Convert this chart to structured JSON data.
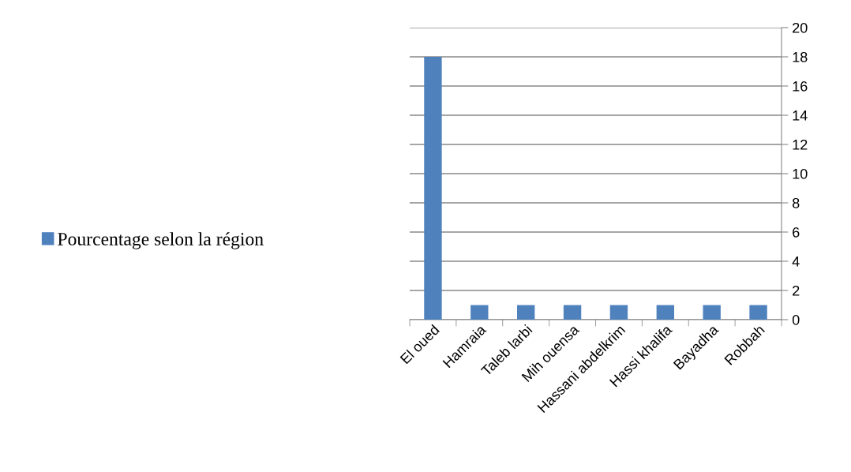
{
  "chart_data": {
    "type": "bar",
    "categories": [
      "El oued",
      "Hamraia",
      "Taleb larbi",
      "Mih ouensa",
      "Hassani abdelkrim",
      "Hassi khalifa",
      "Bayadha",
      "Robbah"
    ],
    "series": [
      {
        "name": "Pourcentage selon la région",
        "color": "#4f81bd",
        "values": [
          18,
          1,
          1,
          1,
          1,
          1,
          1,
          1
        ]
      }
    ],
    "ylim": [
      0,
      20
    ],
    "yticks": [
      0,
      2,
      4,
      6,
      8,
      10,
      12,
      14,
      16,
      18,
      20
    ],
    "grid": "y",
    "legend": "left"
  }
}
